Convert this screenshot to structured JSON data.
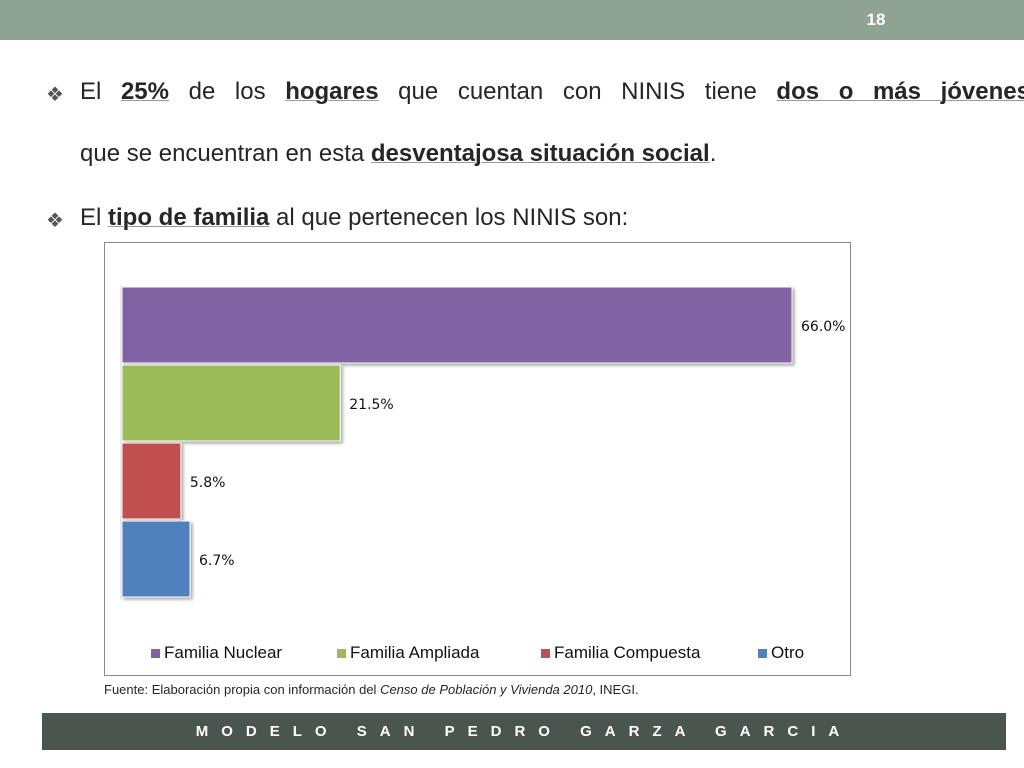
{
  "slide": {
    "number": "18"
  },
  "bullets": {
    "b1_l1": [
      {
        "text": "El ",
        "bold": false
      },
      {
        "text": "25%",
        "bold": true
      },
      {
        "text": " de los ",
        "bold": false
      },
      {
        "text": "hogares",
        "bold": true
      },
      {
        "text": " que cuentan con NINIS tiene ",
        "bold": false
      },
      {
        "text": "dos o más jóvenes",
        "bold": true
      }
    ],
    "b1_l2": [
      {
        "text": "que se encuentran en esta ",
        "bold": false
      },
      {
        "text": "desventajosa situación social",
        "bold": true
      },
      {
        "text": ".",
        "bold": false
      }
    ],
    "b2": [
      {
        "text": "El ",
        "bold": false
      },
      {
        "text": "tipo de familia",
        "bold": true
      },
      {
        "text": " al que pertenecen los NINIS son:",
        "bold": false
      }
    ],
    "icon": "❖"
  },
  "chart_data": {
    "type": "bar",
    "orientation": "horizontal",
    "series": [
      {
        "name": "Familia Nuclear",
        "value": 66.0,
        "label": "66.0%",
        "color": "#8064a2"
      },
      {
        "name": "Familia Ampliada",
        "value": 21.5,
        "label": "21.5%",
        "color": "#9bbb59"
      },
      {
        "name": "Familia Compuesta",
        "value": 5.8,
        "label": "5.8%",
        "color": "#c0504d"
      },
      {
        "name": "Otro",
        "value": 6.7,
        "label": "6.7%",
        "color": "#4f81bd"
      }
    ],
    "xlim": [
      0,
      66.0
    ],
    "legend_position": "bottom"
  },
  "source": {
    "prefix": "Fuente: Elaboración propia con información del ",
    "italic": "Censo de Población y Vivienda  2010",
    "suffix": ", INEGI."
  },
  "footer": {
    "text": "MODELO SAN PEDRO GARZA GARCIA"
  }
}
